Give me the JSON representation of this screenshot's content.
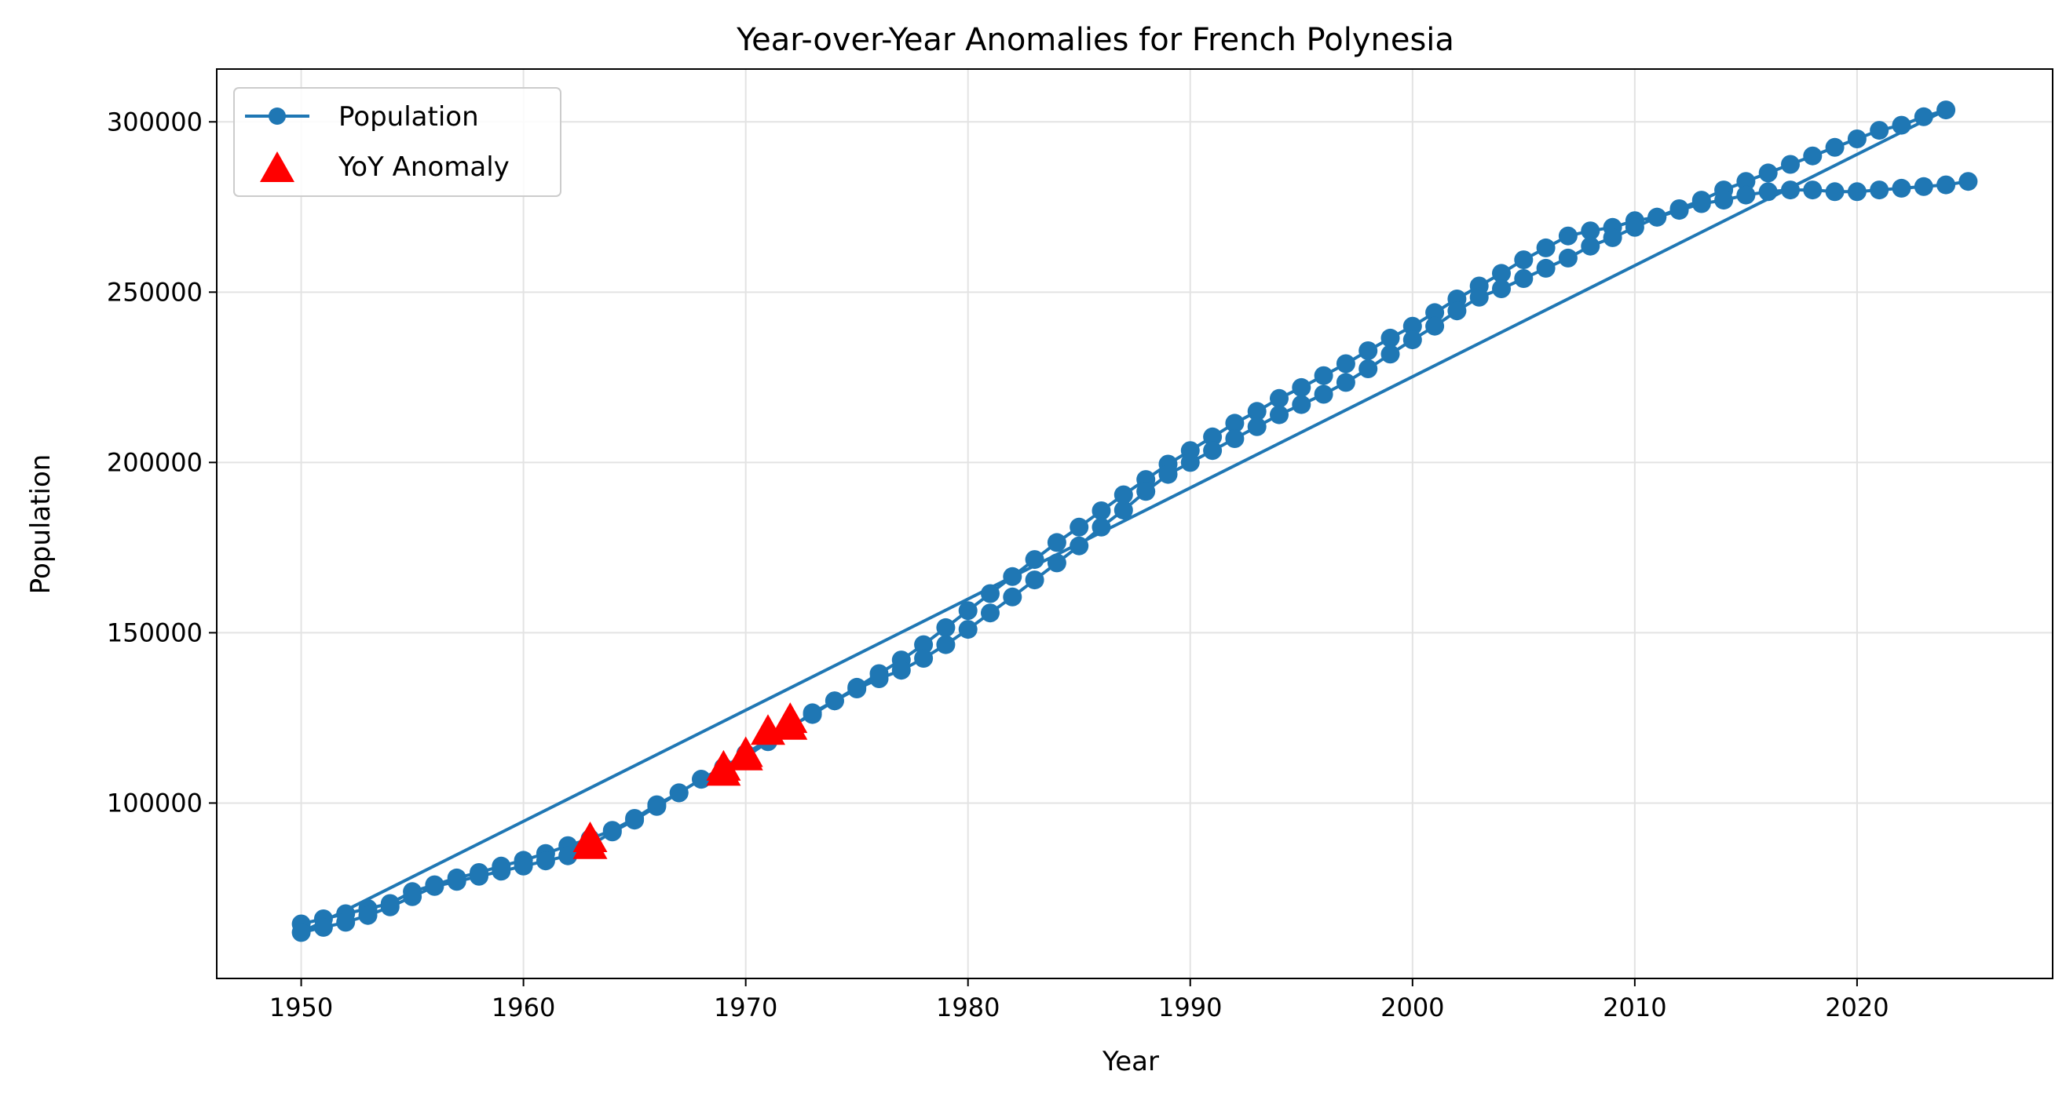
{
  "chart_data": {
    "type": "line",
    "title": "Year-over-Year Anomalies for French Polynesia",
    "xlabel": "Year",
    "ylabel": "Population",
    "xlim": [
      1946.2,
      2028.8
    ],
    "ylim": [
      48500,
      315500
    ],
    "xticks": [
      1950,
      1960,
      1970,
      1980,
      1990,
      2000,
      2010,
      2020
    ],
    "yticks": [
      100000,
      150000,
      200000,
      250000,
      300000
    ],
    "grid": true,
    "legend_position": "upper-left",
    "legend": [
      "Population",
      "YoY Anomaly"
    ],
    "series": [
      {
        "name": "Population",
        "color": "#1f77b4",
        "marker": "circle",
        "points": [
          [
            1950,
            64500
          ],
          [
            1951,
            66000
          ],
          [
            1952,
            67500
          ],
          [
            1953,
            69000
          ],
          [
            1954,
            70500
          ],
          [
            1955,
            74000
          ],
          [
            1956,
            76000
          ],
          [
            1957,
            78000
          ],
          [
            1958,
            79600
          ],
          [
            1959,
            81500
          ],
          [
            1960,
            83200
          ],
          [
            1961,
            85200
          ],
          [
            1962,
            87500
          ],
          [
            1963,
            89500
          ],
          [
            1964,
            92000
          ],
          [
            1965,
            95500
          ],
          [
            1966,
            99500
          ],
          [
            1967,
            103000
          ],
          [
            1968,
            107000
          ],
          [
            1969,
            110500
          ],
          [
            1970,
            114500
          ],
          [
            1971,
            118500
          ],
          [
            1972,
            122500
          ],
          [
            1973,
            126000
          ],
          [
            1974,
            130000
          ],
          [
            1975,
            134000
          ],
          [
            1976,
            138000
          ],
          [
            1977,
            142000
          ],
          [
            1978,
            146500
          ],
          [
            1979,
            151500
          ],
          [
            1980,
            156500
          ],
          [
            1981,
            161500
          ],
          [
            1982,
            166500
          ],
          [
            1983,
            171500
          ],
          [
            1984,
            176500
          ],
          [
            1985,
            181000
          ],
          [
            1986,
            185800
          ],
          [
            1987,
            190500
          ],
          [
            1988,
            195000
          ],
          [
            1989,
            199500
          ],
          [
            1990,
            203500
          ],
          [
            1991,
            207500
          ],
          [
            1992,
            211500
          ],
          [
            1993,
            215000
          ],
          [
            1994,
            218800
          ],
          [
            1995,
            222000
          ],
          [
            1996,
            225500
          ],
          [
            1997,
            229000
          ],
          [
            1998,
            232800
          ],
          [
            1999,
            236500
          ],
          [
            2000,
            240000
          ],
          [
            2001,
            244000
          ],
          [
            2002,
            248000
          ],
          [
            2003,
            251800
          ],
          [
            2004,
            255500
          ],
          [
            2005,
            259500
          ],
          [
            2006,
            263000
          ],
          [
            2007,
            266500
          ],
          [
            2008,
            268000
          ],
          [
            2009,
            269000
          ],
          [
            2010,
            271000
          ],
          [
            2011,
            272000
          ],
          [
            2012,
            274500
          ],
          [
            2013,
            277000
          ],
          [
            2014,
            280000
          ],
          [
            2015,
            282500
          ],
          [
            2016,
            285000
          ],
          [
            2017,
            287500
          ],
          [
            2018,
            290000
          ],
          [
            2019,
            292500
          ],
          [
            2020,
            295000
          ],
          [
            2021,
            297500
          ],
          [
            2022,
            299000
          ],
          [
            2023,
            301500
          ],
          [
            2024,
            303500
          ],
          [
            1950,
            62000
          ],
          [
            1951,
            63500
          ],
          [
            1952,
            65000
          ],
          [
            1953,
            67000
          ],
          [
            1954,
            69500
          ],
          [
            1955,
            72500
          ],
          [
            1956,
            75500
          ],
          [
            1957,
            77000
          ],
          [
            1958,
            78500
          ],
          [
            1959,
            80000
          ],
          [
            1960,
            81500
          ],
          [
            1961,
            83000
          ],
          [
            1962,
            84500
          ],
          [
            1963,
            87500
          ],
          [
            1964,
            91500
          ],
          [
            1965,
            95000
          ],
          [
            1966,
            99000
          ],
          [
            1967,
            103000
          ],
          [
            1968,
            107000
          ],
          [
            1969,
            109000
          ],
          [
            1970,
            113500
          ],
          [
            1971,
            118000
          ],
          [
            1972,
            122000
          ],
          [
            1973,
            126500
          ],
          [
            1974,
            130000
          ],
          [
            1975,
            133500
          ],
          [
            1976,
            136500
          ],
          [
            1977,
            139000
          ],
          [
            1978,
            142500
          ],
          [
            1979,
            146500
          ],
          [
            1980,
            151000
          ],
          [
            1981,
            155800
          ],
          [
            1982,
            160500
          ],
          [
            1983,
            165500
          ],
          [
            1984,
            170500
          ],
          [
            1985,
            175500
          ],
          [
            1986,
            181000
          ],
          [
            1987,
            186000
          ],
          [
            1988,
            191500
          ],
          [
            1989,
            196500
          ],
          [
            1990,
            200000
          ],
          [
            1991,
            203500
          ],
          [
            1992,
            207000
          ],
          [
            1993,
            210500
          ],
          [
            1994,
            214000
          ],
          [
            1995,
            217000
          ],
          [
            1996,
            220000
          ],
          [
            1997,
            223500
          ],
          [
            1998,
            227500
          ],
          [
            1999,
            231800
          ],
          [
            2000,
            236000
          ],
          [
            2001,
            240000
          ],
          [
            2002,
            244500
          ],
          [
            2003,
            248500
          ],
          [
            2004,
            251000
          ],
          [
            2005,
            254000
          ],
          [
            2006,
            257000
          ],
          [
            2007,
            260000
          ],
          [
            2008,
            263500
          ],
          [
            2009,
            266000
          ],
          [
            2010,
            269000
          ],
          [
            2011,
            272000
          ],
          [
            2012,
            274000
          ],
          [
            2013,
            276000
          ],
          [
            2014,
            277000
          ],
          [
            2015,
            278500
          ],
          [
            2016,
            279500
          ],
          [
            2017,
            280000
          ],
          [
            2018,
            280000
          ],
          [
            2019,
            279500
          ],
          [
            2020,
            279500
          ],
          [
            2021,
            280000
          ],
          [
            2022,
            280500
          ],
          [
            2023,
            281000
          ],
          [
            2024,
            281500
          ],
          [
            2025,
            282500
          ]
        ]
      },
      {
        "name": "YoY Anomaly",
        "color": "#ff0000",
        "marker": "triangle",
        "points": [
          [
            1963,
            87500
          ],
          [
            1963,
            89500
          ],
          [
            1969,
            109000
          ],
          [
            1969,
            110500
          ],
          [
            1970,
            113500
          ],
          [
            1970,
            114500
          ],
          [
            1971,
            121000
          ],
          [
            1972,
            122500
          ],
          [
            1972,
            124500
          ]
        ]
      }
    ]
  }
}
